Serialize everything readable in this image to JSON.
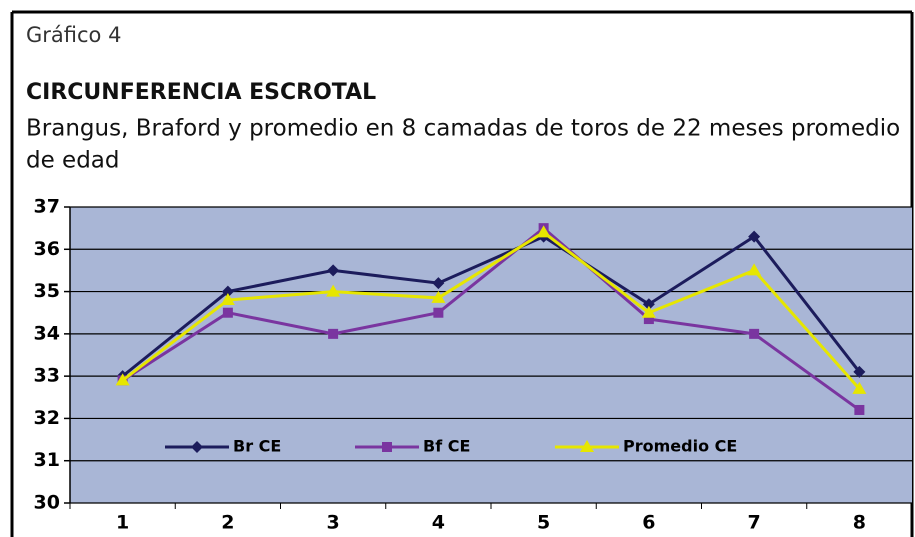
{
  "chart_data": {
    "type": "line",
    "label": "Gráfico 4",
    "title": "CIRCUNFERENCIA ESCROTAL",
    "subtitle": [
      "Brangus, Braford y promedio en 8 camadas de toros de 22 meses promedio",
      "de edad"
    ],
    "categories": [
      "1",
      "2",
      "3",
      "4",
      "5",
      "6",
      "7",
      "8"
    ],
    "series": [
      {
        "name": "Br CE",
        "color": "#1c1c5c",
        "marker": "diamond",
        "values": [
          33.0,
          35.0,
          35.5,
          35.2,
          36.3,
          34.7,
          36.3,
          33.1
        ]
      },
      {
        "name": "Bf CE",
        "color": "#7a35a0",
        "marker": "square",
        "values": [
          32.9,
          34.5,
          34.0,
          34.5,
          36.5,
          34.35,
          34.0,
          32.2
        ]
      },
      {
        "name": "Promedio CE",
        "color": "#e6e600",
        "marker": "triangle",
        "values": [
          32.9,
          34.8,
          35.0,
          34.85,
          36.4,
          34.5,
          35.5,
          32.7
        ]
      }
    ],
    "ylim": [
      30,
      37
    ],
    "yticks": [
      30,
      31,
      32,
      33,
      34,
      35,
      36,
      37
    ],
    "grid": true,
    "plot_background": "#a9b6d6"
  }
}
